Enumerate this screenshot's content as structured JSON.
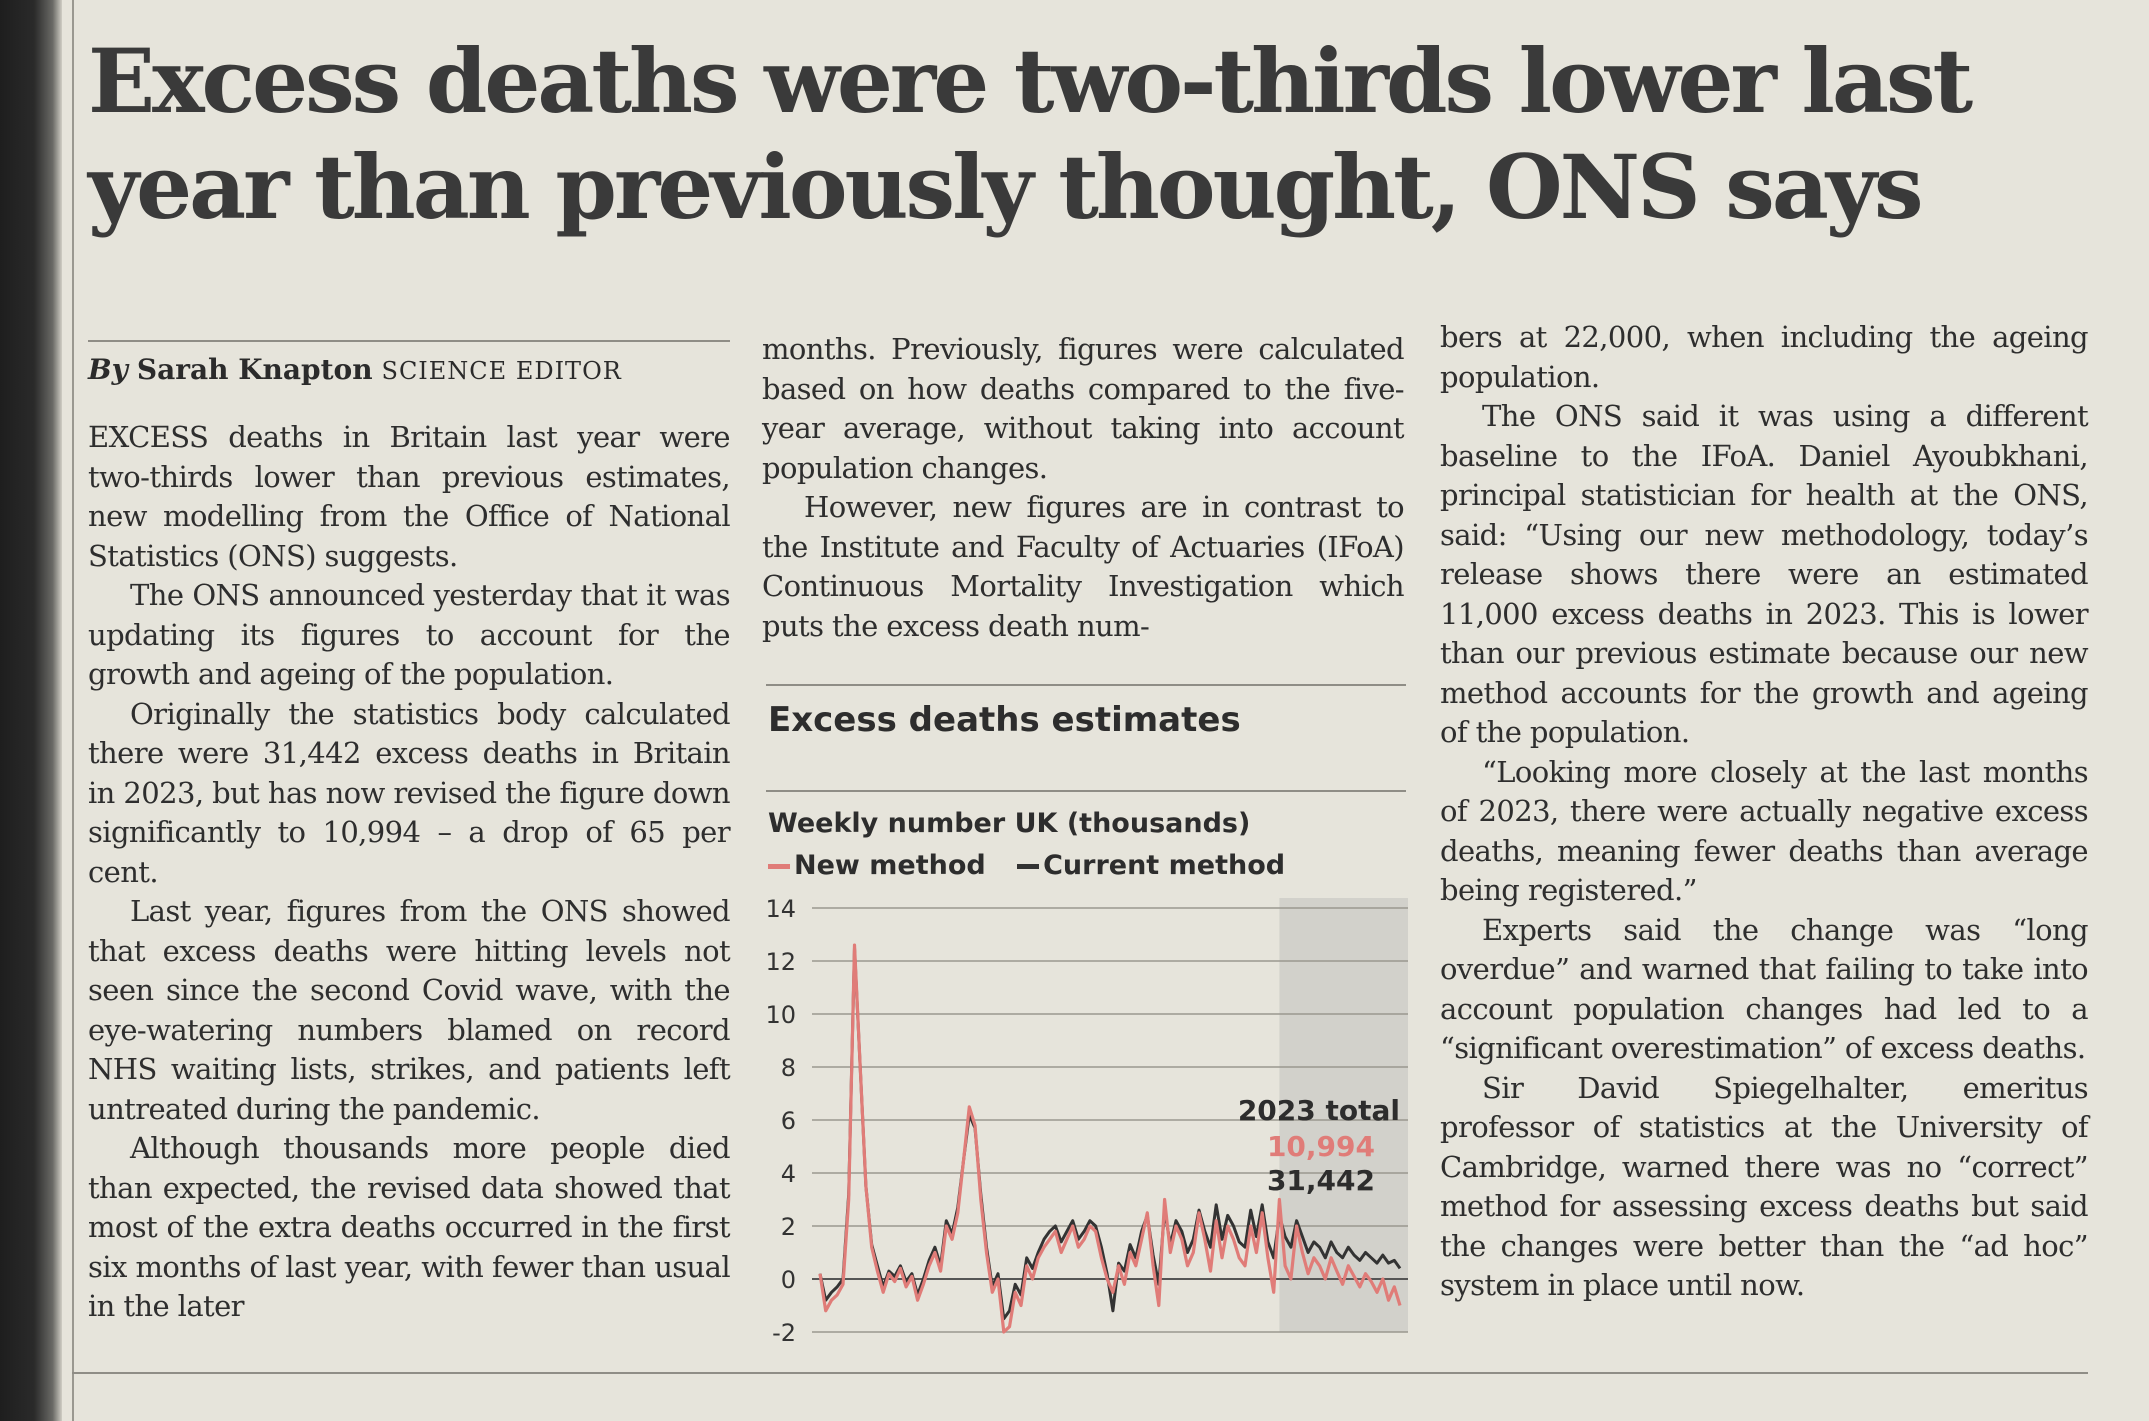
{
  "article": {
    "headline": "Excess deaths were two-thirds lower last year than previously thought, ONS says",
    "byline": {
      "by": "By",
      "name": "Sarah Knapton",
      "role": "SCIENCE EDITOR"
    },
    "col1": [
      "EXCESS deaths in Britain last year were two-thirds lower than previous estimates, new modelling from the Office of National Statistics (ONS) suggests.",
      "The ONS announced yesterday that it was updating its figures to account for the growth and ageing of the population.",
      "Originally the statistics body calculated there were 31,442 excess deaths in Britain in 2023, but has now revised the figure down significantly to 10,994 – a drop of 65 per cent.",
      "Last year, figures from the ONS showed that excess deaths were hitting levels not seen since the second Covid wave, with the eye-watering numbers blamed on record NHS waiting lists, strikes, and patients left untreated during the pandemic.",
      "Although thousands more people died than expected, the revised data showed that most of the extra deaths occurred in the first six months of last year, with fewer than usual in the later"
    ],
    "col2": [
      "months. Previously, figures were calculated based on how deaths compared to the five-year average, without taking into account population changes.",
      "However, new figures are in contrast to the Institute and Faculty of Actuaries (IFoA) Continuous Mortality Investigation which puts the excess death num-"
    ],
    "col3": [
      "bers at 22,000, when including the ageing population.",
      "The ONS said it was using a different baseline to the IFoA. Daniel Ayoubkhani, principal statistician for health at the ONS, said: “Using our new methodology, today’s release shows there were an estimated 11,000 excess deaths in 2023. This is lower than our previous estimate because our new method accounts for the growth and ageing of the population.",
      "“Looking more closely at the last months of 2023, there were actually negative excess deaths, meaning fewer deaths than average being registered.”",
      "Experts said the change was “long overdue” and warned that failing to take into account population changes had led to a “significant overestimation” of excess deaths.",
      "Sir David Spiegelhalter, emeritus professor of statistics at the University of Cambridge, warned there was no “correct” method for assessing excess deaths but said the changes were better than the “ad hoc” system in place until now."
    ]
  },
  "colors": {
    "new_method": "#e07c78",
    "current_method": "#333333",
    "shade": "#d2d1cb"
  },
  "chart_data": {
    "type": "line",
    "title": "Excess deaths estimates",
    "ylabel": "Weekly number UK (thousands)",
    "ylim": [
      -2,
      14
    ],
    "yticks": [
      -2,
      0,
      2,
      4,
      6,
      8,
      10,
      12,
      14
    ],
    "legend": "top-left",
    "grid": true,
    "annotation": {
      "label": "2023 total",
      "new_value": "10,994",
      "current_value": "31,442"
    },
    "series": [
      {
        "name": "New method",
        "values": [
          0.2,
          -1.2,
          -0.8,
          -0.6,
          -0.2,
          3.0,
          12.6,
          8.0,
          3.5,
          1.2,
          0.3,
          -0.5,
          0.2,
          -0.1,
          0.4,
          -0.3,
          0.1,
          -0.8,
          -0.2,
          0.5,
          1.0,
          0.3,
          2.0,
          1.5,
          2.5,
          4.5,
          6.5,
          5.8,
          3.0,
          1.0,
          -0.5,
          0.0,
          -2.0,
          -1.8,
          -0.5,
          -1.0,
          0.5,
          0.0,
          0.8,
          1.2,
          1.5,
          1.8,
          1.0,
          1.5,
          2.0,
          1.2,
          1.5,
          2.0,
          1.8,
          0.8,
          0.0,
          -0.5,
          0.5,
          -0.2,
          1.0,
          0.5,
          1.5,
          2.5,
          0.5,
          -1.0,
          3.0,
          1.0,
          2.0,
          1.5,
          0.5,
          1.0,
          2.5,
          1.5,
          0.3,
          2.2,
          0.8,
          2.0,
          1.5,
          0.8,
          0.5,
          2.0,
          1.0,
          2.5,
          0.8,
          -0.5,
          3.0,
          0.5,
          0.0,
          2.0,
          1.0,
          0.2,
          0.8,
          0.5,
          0.0,
          0.8,
          0.3,
          -0.2,
          0.5,
          0.1,
          -0.3,
          0.2,
          -0.1,
          -0.5,
          0.0,
          -0.8,
          -0.3,
          -1.0
        ]
      },
      {
        "name": "Current method",
        "values": [
          0.2,
          -0.8,
          -0.5,
          -0.3,
          0.0,
          3.2,
          12.5,
          8.0,
          3.5,
          1.3,
          0.5,
          -0.3,
          0.3,
          0.1,
          0.5,
          -0.1,
          0.2,
          -0.6,
          0.0,
          0.7,
          1.2,
          0.5,
          2.2,
          1.7,
          2.7,
          4.5,
          6.2,
          5.7,
          3.2,
          1.2,
          -0.3,
          0.2,
          -1.5,
          -1.2,
          -0.2,
          -0.6,
          0.8,
          0.4,
          1.0,
          1.5,
          1.8,
          2.0,
          1.4,
          1.8,
          2.2,
          1.5,
          1.8,
          2.2,
          2.0,
          1.2,
          0.2,
          -1.2,
          0.6,
          0.3,
          1.3,
          0.8,
          1.8,
          2.4,
          0.9,
          -0.2,
          2.6,
          1.3,
          2.2,
          1.8,
          1.0,
          1.5,
          2.6,
          1.8,
          1.2,
          2.8,
          1.5,
          2.4,
          2.0,
          1.4,
          1.2,
          2.6,
          1.6,
          2.8,
          1.4,
          0.8,
          2.4,
          1.6,
          1.2,
          2.2,
          1.6,
          1.0,
          1.4,
          1.2,
          0.8,
          1.4,
          1.0,
          0.8,
          1.2,
          0.9,
          0.7,
          1.0,
          0.8,
          0.6,
          0.9,
          0.6,
          0.7,
          0.4
        ]
      }
    ]
  }
}
